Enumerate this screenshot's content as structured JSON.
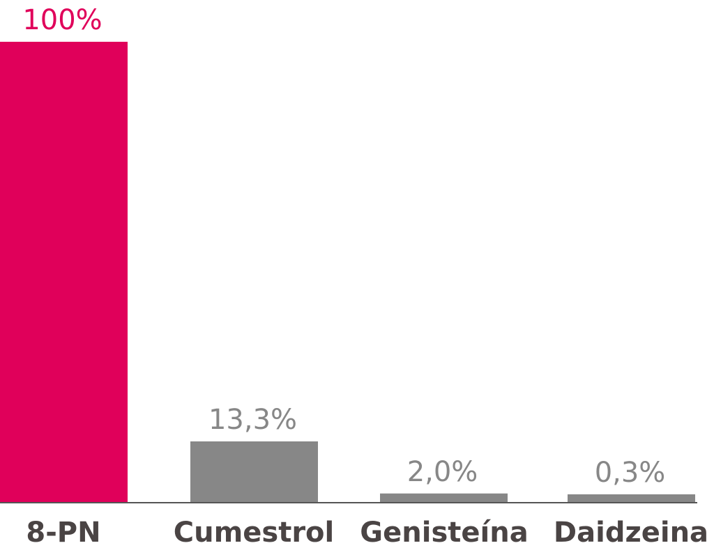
{
  "chart_data": {
    "type": "bar",
    "title": "",
    "xlabel": "",
    "ylabel": "",
    "ylim": [
      0,
      100
    ],
    "grid": false,
    "categories": [
      "8-PN",
      "Cumestrol",
      "Genisteína",
      "Daidzeina"
    ],
    "values": [
      100,
      13.3,
      2.0,
      0.3
    ],
    "value_labels": [
      "100%",
      "13,3%",
      "2,0%",
      "0,3%"
    ],
    "bar_colors": [
      "#e0005a",
      "#878787",
      "#878787",
      "#878787"
    ],
    "value_label_colors": [
      "#e0005a",
      "#878787",
      "#878787",
      "#878787"
    ],
    "category_label_color": "#4a4444",
    "axis_color": "#555555"
  }
}
